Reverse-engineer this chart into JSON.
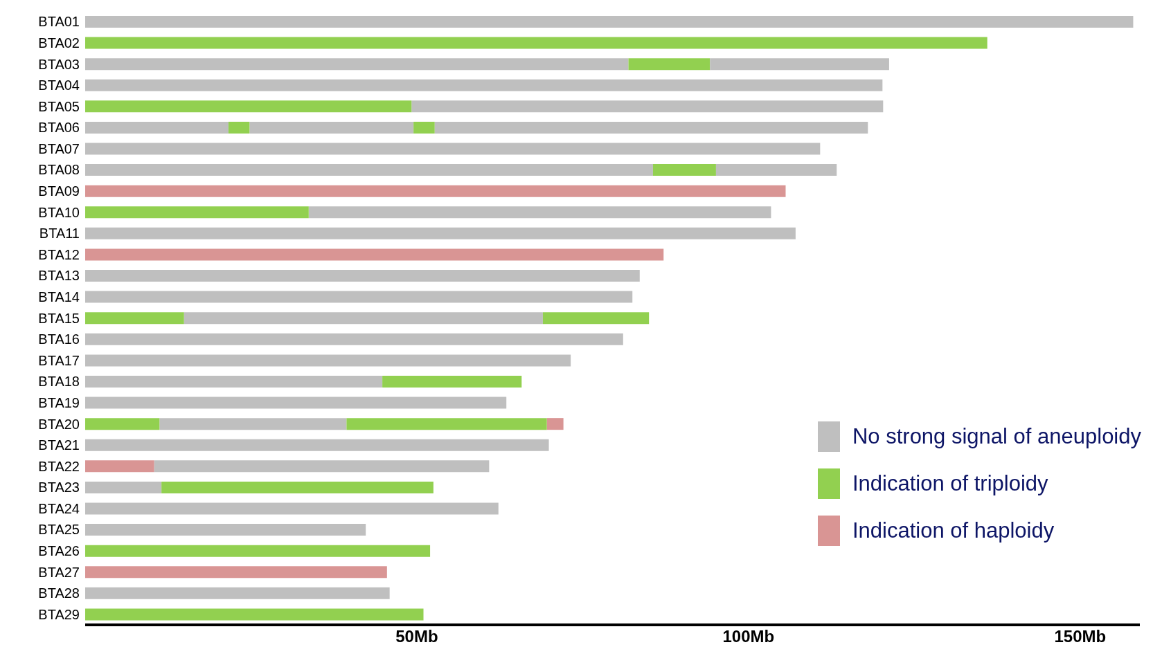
{
  "chart_data": {
    "type": "bar",
    "orientation": "horizontal",
    "legend": "bottom right",
    "categories": [
      "BTA01",
      "BTA02",
      "BTA03",
      "BTA04",
      "BTA05",
      "BTA06",
      "BTA07",
      "BTA08",
      "BTA09",
      "BTA10",
      "BTA11",
      "BTA12",
      "BTA13",
      "BTA14",
      "BTA15",
      "BTA16",
      "BTA17",
      "BTA18",
      "BTA19",
      "BTA20",
      "BTA21",
      "BTA22",
      "BTA23",
      "BTA24",
      "BTA25",
      "BTA26",
      "BTA27",
      "BTA28",
      "BTA29"
    ],
    "xlim": [
      0,
      159
    ],
    "xticks": [
      {
        "value": 50,
        "label": "50Mb"
      },
      {
        "value": 100,
        "label": "100Mb"
      },
      {
        "value": 150,
        "label": "150Mb"
      }
    ],
    "series": [
      {
        "name": "No strong signal of aneuploidy",
        "color": "#bfbfbf",
        "base": [
          0,
          null,
          0,
          0,
          49.2,
          0,
          0,
          0,
          null,
          33.7,
          0,
          null,
          0,
          0,
          14.9,
          0,
          0,
          0,
          0,
          11.2,
          0,
          10.4,
          0,
          0,
          0,
          null,
          null,
          0,
          null
        ],
        "values": [
          158,
          null,
          81.9,
          120.2,
          71.1,
          21.6,
          110.8,
          85.6,
          null,
          69.7,
          107.1,
          null,
          83.6,
          82.5,
          54.1,
          81.1,
          73.2,
          44.8,
          63.5,
          28.2,
          69.9,
          50.5,
          11.5,
          62.3,
          42.3,
          null,
          null,
          45.9,
          null
        ]
      },
      {
        "name": "Indication of triploidy",
        "color": "#92d050",
        "base": [
          null,
          0,
          81.9,
          null,
          0,
          21.6,
          null,
          85.6,
          null,
          0,
          null,
          null,
          null,
          null,
          0,
          null,
          null,
          44.8,
          null,
          0,
          null,
          null,
          11.5,
          null,
          null,
          0,
          null,
          null,
          0
        ],
        "values": [
          null,
          136,
          12.3,
          null,
          49.2,
          3.2,
          null,
          9.5,
          null,
          33.7,
          null,
          null,
          null,
          null,
          14.9,
          null,
          null,
          21.0,
          null,
          11.2,
          null,
          null,
          41.0,
          null,
          null,
          52.0,
          null,
          null,
          51.0
        ]
      },
      {
        "name": "Indication of haploidy",
        "color": "#d99594",
        "base": [
          null,
          null,
          null,
          null,
          null,
          null,
          null,
          null,
          0,
          null,
          null,
          0,
          null,
          null,
          null,
          null,
          null,
          null,
          null,
          69.6,
          null,
          0,
          null,
          null,
          null,
          null,
          0,
          null,
          null
        ],
        "values": [
          null,
          null,
          null,
          null,
          null,
          null,
          null,
          null,
          105.6,
          null,
          null,
          87.2,
          null,
          null,
          null,
          null,
          null,
          null,
          null,
          2.5,
          null,
          10.4,
          null,
          null,
          null,
          null,
          45.5,
          null,
          null
        ]
      },
      {
        "color": "#bfbfbf",
        "base": [
          null,
          null,
          94.2,
          null,
          null,
          24.8,
          null,
          95.1,
          null,
          null,
          null,
          null,
          null,
          null,
          null,
          null,
          null,
          null,
          null,
          null,
          null,
          null,
          null,
          null,
          null,
          null,
          null,
          null,
          null
        ],
        "values": [
          null,
          null,
          27.0,
          null,
          null,
          24.7,
          null,
          18.2,
          null,
          null,
          null,
          null,
          null,
          null,
          null,
          null,
          null,
          null,
          null,
          null,
          null,
          null,
          null,
          null,
          null,
          null,
          null,
          null,
          null
        ]
      },
      {
        "color": "#92d050",
        "base": [
          null,
          null,
          null,
          null,
          null,
          49.5,
          null,
          null,
          null,
          null,
          null,
          null,
          null,
          null,
          69.0,
          null,
          null,
          null,
          null,
          39.4,
          null,
          null,
          null,
          null,
          null,
          null,
          null,
          null,
          null
        ],
        "values": [
          null,
          null,
          null,
          null,
          null,
          3.2,
          null,
          null,
          null,
          null,
          null,
          null,
          null,
          null,
          16.0,
          null,
          null,
          null,
          null,
          30.2,
          null,
          null,
          null,
          null,
          null,
          null,
          null,
          null,
          null
        ]
      },
      {
        "color": "#bfbfbf",
        "base": [
          null,
          null,
          null,
          null,
          null,
          52.7,
          null,
          null,
          null,
          null,
          null,
          null,
          null,
          null,
          null,
          null,
          null,
          null,
          null,
          null,
          null,
          null,
          null,
          null,
          null,
          null,
          null,
          null,
          null
        ],
        "values": [
          null,
          null,
          null,
          null,
          null,
          65.3,
          null,
          null,
          null,
          null,
          null,
          null,
          null,
          null,
          null,
          null,
          null,
          null,
          null,
          null,
          null,
          null,
          null,
          null,
          null,
          null,
          null,
          null,
          null
        ]
      }
    ]
  }
}
